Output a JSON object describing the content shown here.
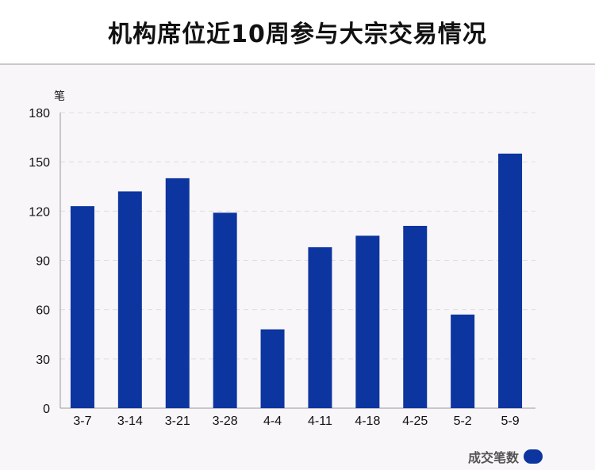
{
  "header": {
    "title": "机构席位近10周参与大宗交易情况"
  },
  "colors": {
    "bar": "#0d35a0",
    "axis": "#999999",
    "grid": "#dddddd",
    "text": "#111111"
  },
  "chart_data": {
    "type": "bar",
    "title": "机构席位近10周参与大宗交易情况",
    "ylabel": "笔",
    "xlabel": "",
    "categories": [
      "3-7",
      "3-14",
      "3-21",
      "3-28",
      "4-4",
      "4-11",
      "4-18",
      "4-25",
      "5-2",
      "5-9"
    ],
    "series": [
      {
        "name": "成交笔数",
        "values": [
          123,
          132,
          140,
          119,
          48,
          98,
          105,
          111,
          57,
          155
        ]
      }
    ],
    "ylim": [
      0,
      180
    ],
    "yticks": [
      0,
      30,
      60,
      90,
      120,
      150,
      180
    ],
    "grid": true,
    "legend": "bottom-right"
  }
}
